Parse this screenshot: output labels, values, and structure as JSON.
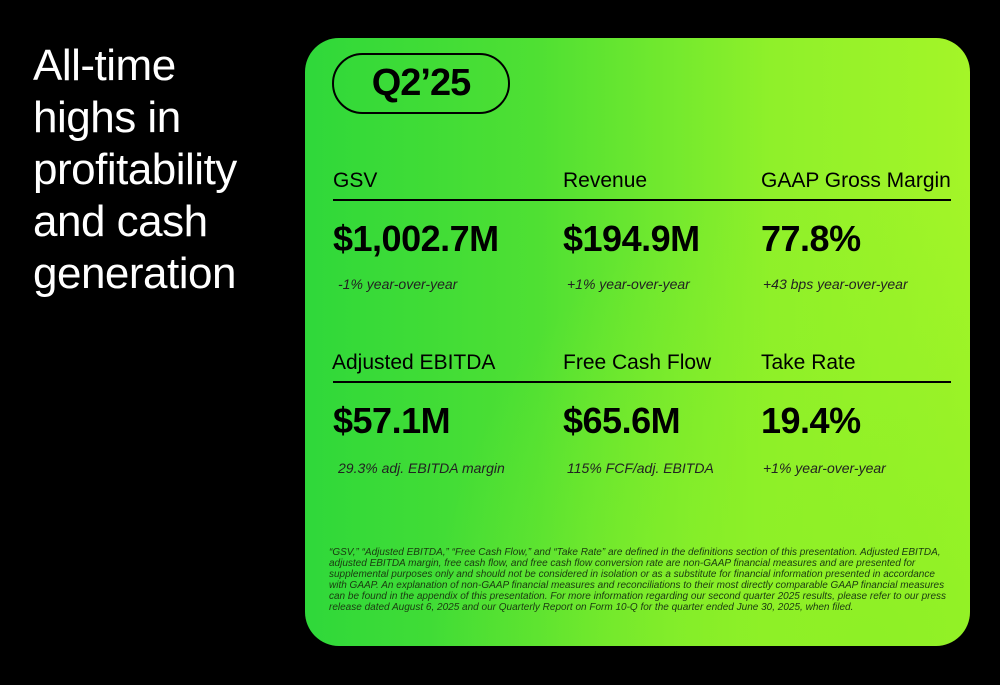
{
  "headline": [
    "All-time",
    "highs in",
    "profitability",
    "and cash",
    "generation"
  ],
  "quarter": "Q2’25",
  "row1": [
    {
      "label": "GSV",
      "value": "$1,002.7M",
      "sub": "-1% year-over-year"
    },
    {
      "label": "Revenue",
      "value": "$194.9M",
      "sub": "+1% year-over-year"
    },
    {
      "label": "GAAP Gross Margin",
      "value": "77.8%",
      "sub": "+43 bps year-over-year"
    }
  ],
  "row2": [
    {
      "label": "Adjusted EBITDA",
      "value": "$57.1M",
      "sub": "29.3% adj. EBITDA margin"
    },
    {
      "label": "Free Cash Flow",
      "value": "$65.6M",
      "sub": "115% FCF/adj. EBITDA"
    },
    {
      "label": "Take Rate",
      "value": "19.4%",
      "sub": "+1% year-over-year"
    }
  ],
  "footnote": "“GSV,” “Adjusted EBITDA,” “Free Cash Flow,” and “Take Rate” are defined in the definitions section of this presentation. Adjusted EBITDA, adjusted EBITDA margin, free cash flow, and free cash flow conversion rate are non-GAAP financial measures and are presented for supplemental purposes only and should not be considered in isolation or as a substitute for financial information presented in accordance with GAAP. An explanation of non-GAAP financial measures and reconciliations to their most directly comparable GAAP financial measures can be found in the appendix of this presentation. For more information regarding our second quarter 2025 results, please refer to our press release dated August 6, 2025 and our Quarterly Report on Form 10-Q for the quarter ended June 30, 2025, when filed."
}
